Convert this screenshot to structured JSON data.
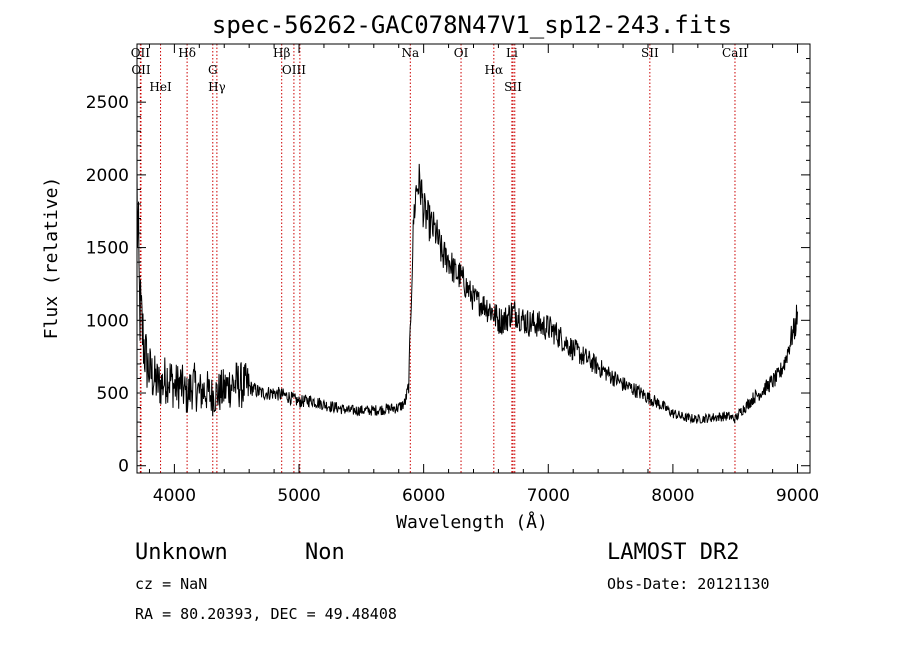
{
  "chart_data": {
    "type": "line",
    "title": "spec-56262-GAC078N47V1_sp12-243.fits",
    "xlabel": "Wavelength (Å)",
    "ylabel": "Flux (relative)",
    "xlim": [
      3700,
      9100
    ],
    "ylim": [
      -50,
      2900
    ],
    "xticks": [
      4000,
      5000,
      6000,
      7000,
      8000,
      9000
    ],
    "yticks": [
      0,
      500,
      1000,
      1500,
      2000,
      2500
    ],
    "grid": false,
    "line_color": "#000000",
    "marker_color": "#cc0000",
    "series": [
      {
        "x": [
          3700,
          3720,
          3740,
          3760,
          3780,
          3800,
          3820,
          3850,
          3880,
          3900,
          3950,
          4000,
          4050,
          4100,
          4150,
          4200,
          4250,
          4300,
          4350,
          4400,
          4450,
          4500,
          4600,
          4700,
          4800,
          4900,
          5000,
          5100,
          5200,
          5300,
          5400,
          5500,
          5600,
          5700,
          5800,
          5850,
          5880,
          5900,
          5920,
          5940,
          5960,
          5980,
          6000,
          6030,
          6060,
          6100,
          6150,
          6200,
          6250,
          6300,
          6350,
          6400,
          6450,
          6500,
          6550,
          6600,
          6650,
          6700,
          6750,
          6800,
          6850,
          6900,
          6950,
          7000,
          7050,
          7100,
          7200,
          7300,
          7400,
          7500,
          7600,
          7700,
          7800,
          7900,
          8000,
          8100,
          8200,
          8300,
          8400,
          8450,
          8500,
          8550,
          8600,
          8650,
          8700,
          8750,
          8800,
          8850,
          8900,
          8950,
          8980,
          9000
        ],
        "y": [
          1850,
          1100,
          950,
          800,
          700,
          650,
          620,
          580,
          560,
          560,
          620,
          540,
          560,
          480,
          560,
          500,
          520,
          480,
          500,
          520,
          560,
          560,
          540,
          500,
          500,
          480,
          440,
          450,
          420,
          400,
          380,
          380,
          380,
          390,
          400,
          430,
          550,
          1150,
          1700,
          1900,
          1950,
          1900,
          1750,
          1700,
          1650,
          1600,
          1450,
          1420,
          1330,
          1300,
          1220,
          1150,
          1120,
          1100,
          1060,
          1000,
          1000,
          1050,
          1050,
          1000,
          980,
          980,
          960,
          950,
          920,
          880,
          800,
          740,
          680,
          620,
          560,
          520,
          470,
          420,
          360,
          330,
          320,
          330,
          340,
          340,
          320,
          380,
          420,
          470,
          500,
          540,
          580,
          620,
          720,
          880,
          950,
          1060
        ]
      }
    ],
    "line_markers": [
      {
        "wavelength": 3727,
        "label": "OII"
      },
      {
        "wavelength": 3732,
        "label": "OII"
      },
      {
        "wavelength": 3889,
        "label": "HeI"
      },
      {
        "wavelength": 4102,
        "label": "Hδ"
      },
      {
        "wavelength": 4308,
        "label": "G"
      },
      {
        "wavelength": 4341,
        "label": "Hγ"
      },
      {
        "wavelength": 4861,
        "label": "Hβ"
      },
      {
        "wavelength": 4959,
        "label": "OIII"
      },
      {
        "wavelength": 5007,
        "label": ""
      },
      {
        "wavelength": 5893,
        "label": "Na"
      },
      {
        "wavelength": 6300,
        "label": "OI"
      },
      {
        "wavelength": 6563,
        "label": "Hα"
      },
      {
        "wavelength": 6708,
        "label": "Li"
      },
      {
        "wavelength": 6717,
        "label": "SII"
      },
      {
        "wavelength": 6731,
        "label": ""
      },
      {
        "wavelength": 7815,
        "label": "SII"
      },
      {
        "wavelength": 8498,
        "label": "CaII"
      }
    ]
  },
  "info": {
    "object_class": "Unknown",
    "subclass": "Non",
    "redshift": "cz = NaN",
    "coords": "RA =  80.20393, DEC =  49.48408",
    "survey": "LAMOST DR2",
    "obs_date": "Obs-Date: 20121130"
  }
}
